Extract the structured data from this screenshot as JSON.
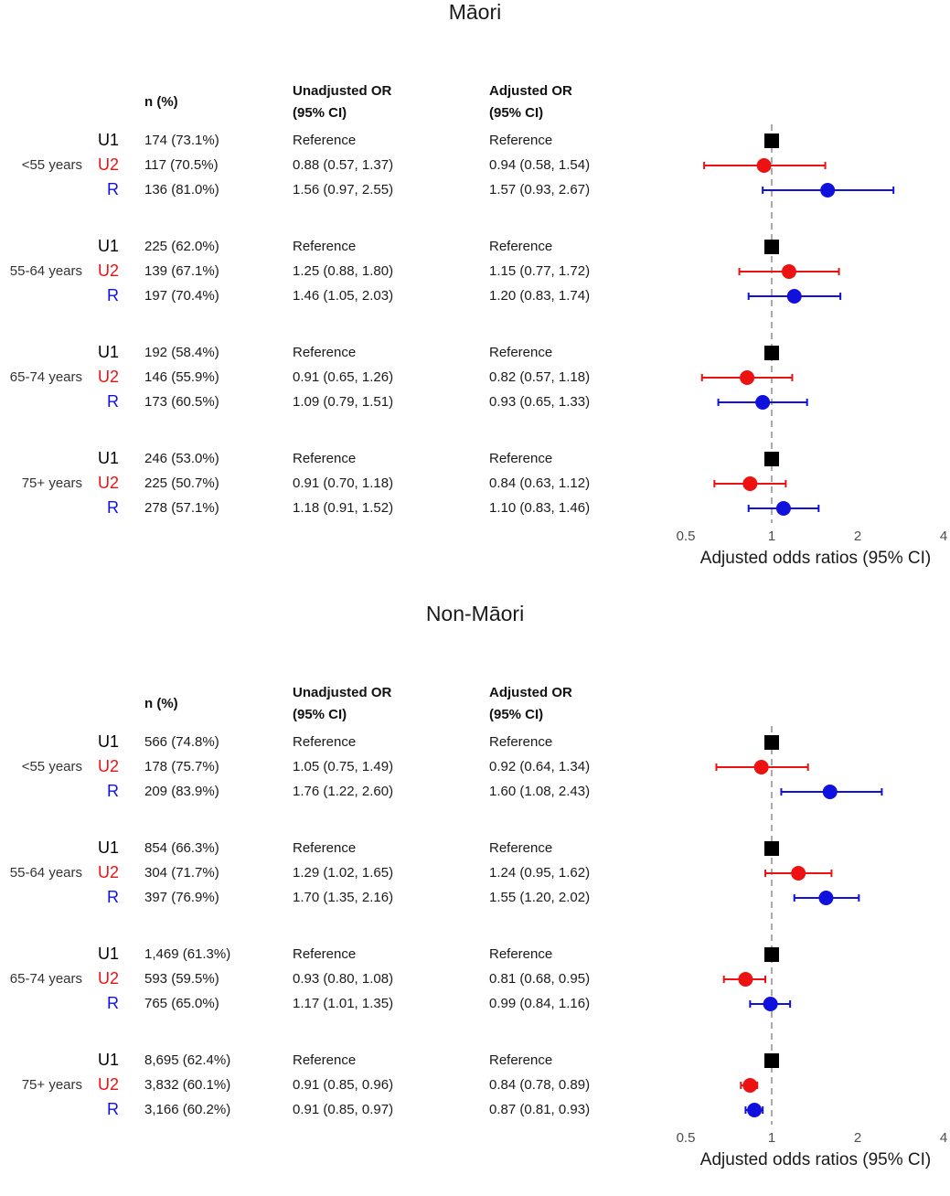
{
  "colors": {
    "U1": "#000000",
    "U2": "#ee1111",
    "R": "#1111dd",
    "refline": "#aaaaaa"
  },
  "column_headers": {
    "n": "n (%)",
    "unadj_1": "Unadjusted OR",
    "unadj_2": "(95% CI)",
    "adj_1": "Adjusted OR",
    "adj_2": "(95% CI)"
  },
  "chart_data": [
    {
      "type": "forest",
      "title": "Māori",
      "xlabel": "Adjusted odds ratios (95% CI)",
      "xscale": "log",
      "xlim": [
        0.5,
        4
      ],
      "xticks": [
        "0.5",
        "1",
        "2",
        "4"
      ],
      "reference_line": 1,
      "groups": [
        {
          "label": "<55 years",
          "rows": [
            {
              "sub": "U1",
              "n": "174 (73.1%)",
              "unadj": "Reference",
              "adj": "Reference",
              "or": 1,
              "lo": null,
              "hi": null
            },
            {
              "sub": "U2",
              "n": "117 (70.5%)",
              "unadj": "0.88 (0.57, 1.37)",
              "adj": "0.94 (0.58, 1.54)",
              "or": 0.94,
              "lo": 0.58,
              "hi": 1.54
            },
            {
              "sub": "R",
              "n": "136 (81.0%)",
              "unadj": "1.56 (0.97, 2.55)",
              "adj": "1.57 (0.93, 2.67)",
              "or": 1.57,
              "lo": 0.93,
              "hi": 2.67
            }
          ]
        },
        {
          "label": "55-64 years",
          "rows": [
            {
              "sub": "U1",
              "n": "225 (62.0%)",
              "unadj": "Reference",
              "adj": "Reference",
              "or": 1,
              "lo": null,
              "hi": null
            },
            {
              "sub": "U2",
              "n": "139 (67.1%)",
              "unadj": "1.25 (0.88, 1.80)",
              "adj": "1.15 (0.77, 1.72)",
              "or": 1.15,
              "lo": 0.77,
              "hi": 1.72
            },
            {
              "sub": "R",
              "n": "197 (70.4%)",
              "unadj": "1.46 (1.05, 2.03)",
              "adj": "1.20 (0.83, 1.74)",
              "or": 1.2,
              "lo": 0.83,
              "hi": 1.74
            }
          ]
        },
        {
          "label": "65-74 years",
          "rows": [
            {
              "sub": "U1",
              "n": "192 (58.4%)",
              "unadj": "Reference",
              "adj": "Reference",
              "or": 1,
              "lo": null,
              "hi": null
            },
            {
              "sub": "U2",
              "n": "146 (55.9%)",
              "unadj": "0.91 (0.65, 1.26)",
              "adj": "0.82 (0.57, 1.18)",
              "or": 0.82,
              "lo": 0.57,
              "hi": 1.18
            },
            {
              "sub": "R",
              "n": "173 (60.5%)",
              "unadj": "1.09 (0.79, 1.51)",
              "adj": "0.93 (0.65, 1.33)",
              "or": 0.93,
              "lo": 0.65,
              "hi": 1.33
            }
          ]
        },
        {
          "label": "75+ years",
          "rows": [
            {
              "sub": "U1",
              "n": "246 (53.0%)",
              "unadj": "Reference",
              "adj": "Reference",
              "or": 1,
              "lo": null,
              "hi": null
            },
            {
              "sub": "U2",
              "n": "225 (50.7%)",
              "unadj": "0.91 (0.70, 1.18)",
              "adj": "0.84 (0.63, 1.12)",
              "or": 0.84,
              "lo": 0.63,
              "hi": 1.12
            },
            {
              "sub": "R",
              "n": "278 (57.1%)",
              "unadj": "1.18 (0.91, 1.52)",
              "adj": "1.10 (0.83, 1.46)",
              "or": 1.1,
              "lo": 0.83,
              "hi": 1.46
            }
          ]
        }
      ]
    },
    {
      "type": "forest",
      "title": "Non-Māori",
      "xlabel": "Adjusted odds ratios (95% CI)",
      "xscale": "log",
      "xlim": [
        0.5,
        4
      ],
      "xticks": [
        "0.5",
        "1",
        "2",
        "4"
      ],
      "reference_line": 1,
      "groups": [
        {
          "label": "<55 years",
          "rows": [
            {
              "sub": "U1",
              "n": "566 (74.8%)",
              "unadj": "Reference",
              "adj": "Reference",
              "or": 1,
              "lo": null,
              "hi": null
            },
            {
              "sub": "U2",
              "n": "178 (75.7%)",
              "unadj": "1.05 (0.75, 1.49)",
              "adj": "0.92 (0.64, 1.34)",
              "or": 0.92,
              "lo": 0.64,
              "hi": 1.34
            },
            {
              "sub": "R",
              "n": "209 (83.9%)",
              "unadj": "1.76 (1.22, 2.60)",
              "adj": "1.60 (1.08, 2.43)",
              "or": 1.6,
              "lo": 1.08,
              "hi": 2.43
            }
          ]
        },
        {
          "label": "55-64 years",
          "rows": [
            {
              "sub": "U1",
              "n": "854 (66.3%)",
              "unadj": "Reference",
              "adj": "Reference",
              "or": 1,
              "lo": null,
              "hi": null
            },
            {
              "sub": "U2",
              "n": "304 (71.7%)",
              "unadj": "1.29 (1.02, 1.65)",
              "adj": "1.24 (0.95, 1.62)",
              "or": 1.24,
              "lo": 0.95,
              "hi": 1.62
            },
            {
              "sub": "R",
              "n": "397 (76.9%)",
              "unadj": "1.70 (1.35, 2.16)",
              "adj": "1.55 (1.20, 2.02)",
              "or": 1.55,
              "lo": 1.2,
              "hi": 2.02
            }
          ]
        },
        {
          "label": "65-74 years",
          "rows": [
            {
              "sub": "U1",
              "n": "1,469 (61.3%)",
              "unadj": "Reference",
              "adj": "Reference",
              "or": 1,
              "lo": null,
              "hi": null
            },
            {
              "sub": "U2",
              "n": "593 (59.5%)",
              "unadj": "0.93 (0.80, 1.08)",
              "adj": "0.81 (0.68, 0.95)",
              "or": 0.81,
              "lo": 0.68,
              "hi": 0.95
            },
            {
              "sub": "R",
              "n": "765 (65.0%)",
              "unadj": "1.17 (1.01, 1.35)",
              "adj": "0.99 (0.84, 1.16)",
              "or": 0.99,
              "lo": 0.84,
              "hi": 1.16
            }
          ]
        },
        {
          "label": "75+ years",
          "rows": [
            {
              "sub": "U1",
              "n": "8,695 (62.4%)",
              "unadj": "Reference",
              "adj": "Reference",
              "or": 1,
              "lo": null,
              "hi": null
            },
            {
              "sub": "U2",
              "n": "3,832 (60.1%)",
              "unadj": "0.91 (0.85, 0.96)",
              "adj": "0.84 (0.78, 0.89)",
              "or": 0.84,
              "lo": 0.78,
              "hi": 0.89
            },
            {
              "sub": "R",
              "n": "3,166 (60.2%)",
              "unadj": "0.91 (0.85, 0.97)",
              "adj": "0.87 (0.81, 0.93)",
              "or": 0.87,
              "lo": 0.81,
              "hi": 0.93
            }
          ]
        }
      ]
    }
  ]
}
